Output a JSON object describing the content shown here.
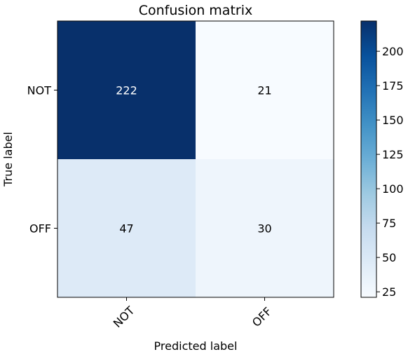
{
  "chart_data": {
    "type": "heatmap",
    "title": "Confusion matrix",
    "xlabel": "Predicted label",
    "ylabel": "True label",
    "x_categories": [
      "NOT",
      "OFF"
    ],
    "y_categories": [
      "NOT",
      "OFF"
    ],
    "values": [
      [
        222,
        21
      ],
      [
        47,
        30
      ]
    ],
    "colormap": "Blues",
    "colorbar": {
      "range": [
        21,
        222
      ],
      "ticks": [
        25,
        50,
        75,
        100,
        125,
        150,
        175,
        200
      ]
    },
    "x_tick_rotation_deg": 45,
    "cell_text_colors": {
      "dark_cell": "#ffffff",
      "light_cell": "#000000"
    },
    "grid": false
  }
}
